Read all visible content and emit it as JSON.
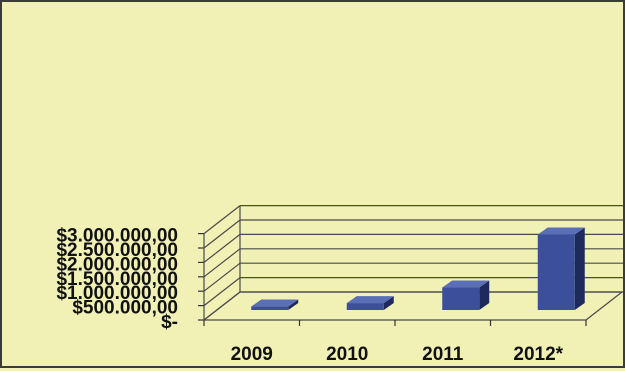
{
  "chart_data": {
    "type": "bar",
    "categories": [
      "2009",
      "2010",
      "2011",
      "2012*"
    ],
    "values": [
      120000,
      240000,
      780000,
      2620000
    ],
    "ylim": [
      0,
      3000000
    ],
    "y_ticks": [
      {
        "value": 0,
        "label": "$-"
      },
      {
        "value": 500000,
        "label": "$500.000,00"
      },
      {
        "value": 1000000,
        "label": "$1.000.000,00"
      },
      {
        "value": 1500000,
        "label": "$1.500.000,00"
      },
      {
        "value": 2000000,
        "label": "$2.000.000,00"
      },
      {
        "value": 2500000,
        "label": "$2.500.000,00"
      },
      {
        "value": 3000000,
        "label": "$3.000.000,00"
      }
    ],
    "grid": true,
    "legend": "none",
    "bar_color": "#3b4f9a"
  }
}
